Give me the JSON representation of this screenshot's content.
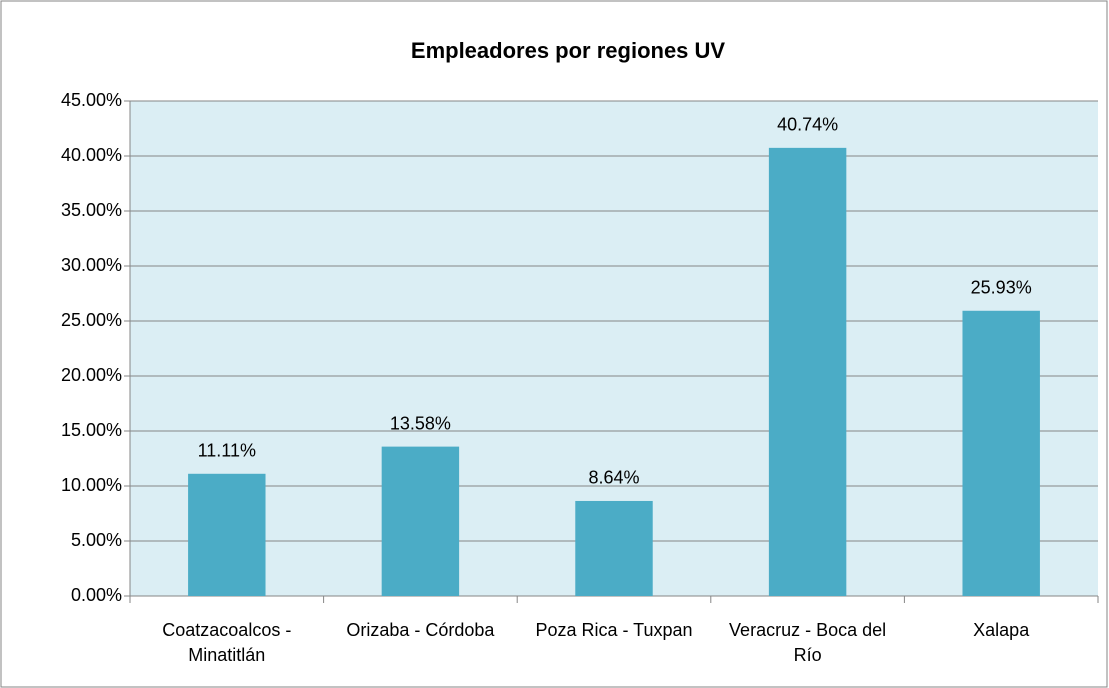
{
  "chart_data": {
    "type": "bar",
    "title": "Empleadores por regiones UV",
    "categories": [
      "Coatzacoalcos - Minatitlán",
      "Orizaba - Córdoba",
      "Poza Rica - Tuxpan",
      "Veracruz - Boca del Río",
      "Xalapa"
    ],
    "values": [
      11.11,
      13.58,
      8.64,
      40.74,
      25.93
    ],
    "value_labels": [
      "11.11%",
      "13.58%",
      "8.64%",
      "40.74%",
      "25.93%"
    ],
    "color": "#4bacc6",
    "ylim": [
      0,
      45
    ],
    "yticks": [
      {
        "value": 0,
        "label": "0.00%"
      },
      {
        "value": 5,
        "label": "5.00%"
      },
      {
        "value": 10,
        "label": "10.00%"
      },
      {
        "value": 15,
        "label": "15.00%"
      },
      {
        "value": 20,
        "label": "20.00%"
      },
      {
        "value": 25,
        "label": "25.00%"
      },
      {
        "value": 30,
        "label": "30.00%"
      },
      {
        "value": 35,
        "label": "35.00%"
      },
      {
        "value": 40,
        "label": "40.00%"
      },
      {
        "value": 45,
        "label": "45.00%"
      }
    ],
    "grid": true
  }
}
